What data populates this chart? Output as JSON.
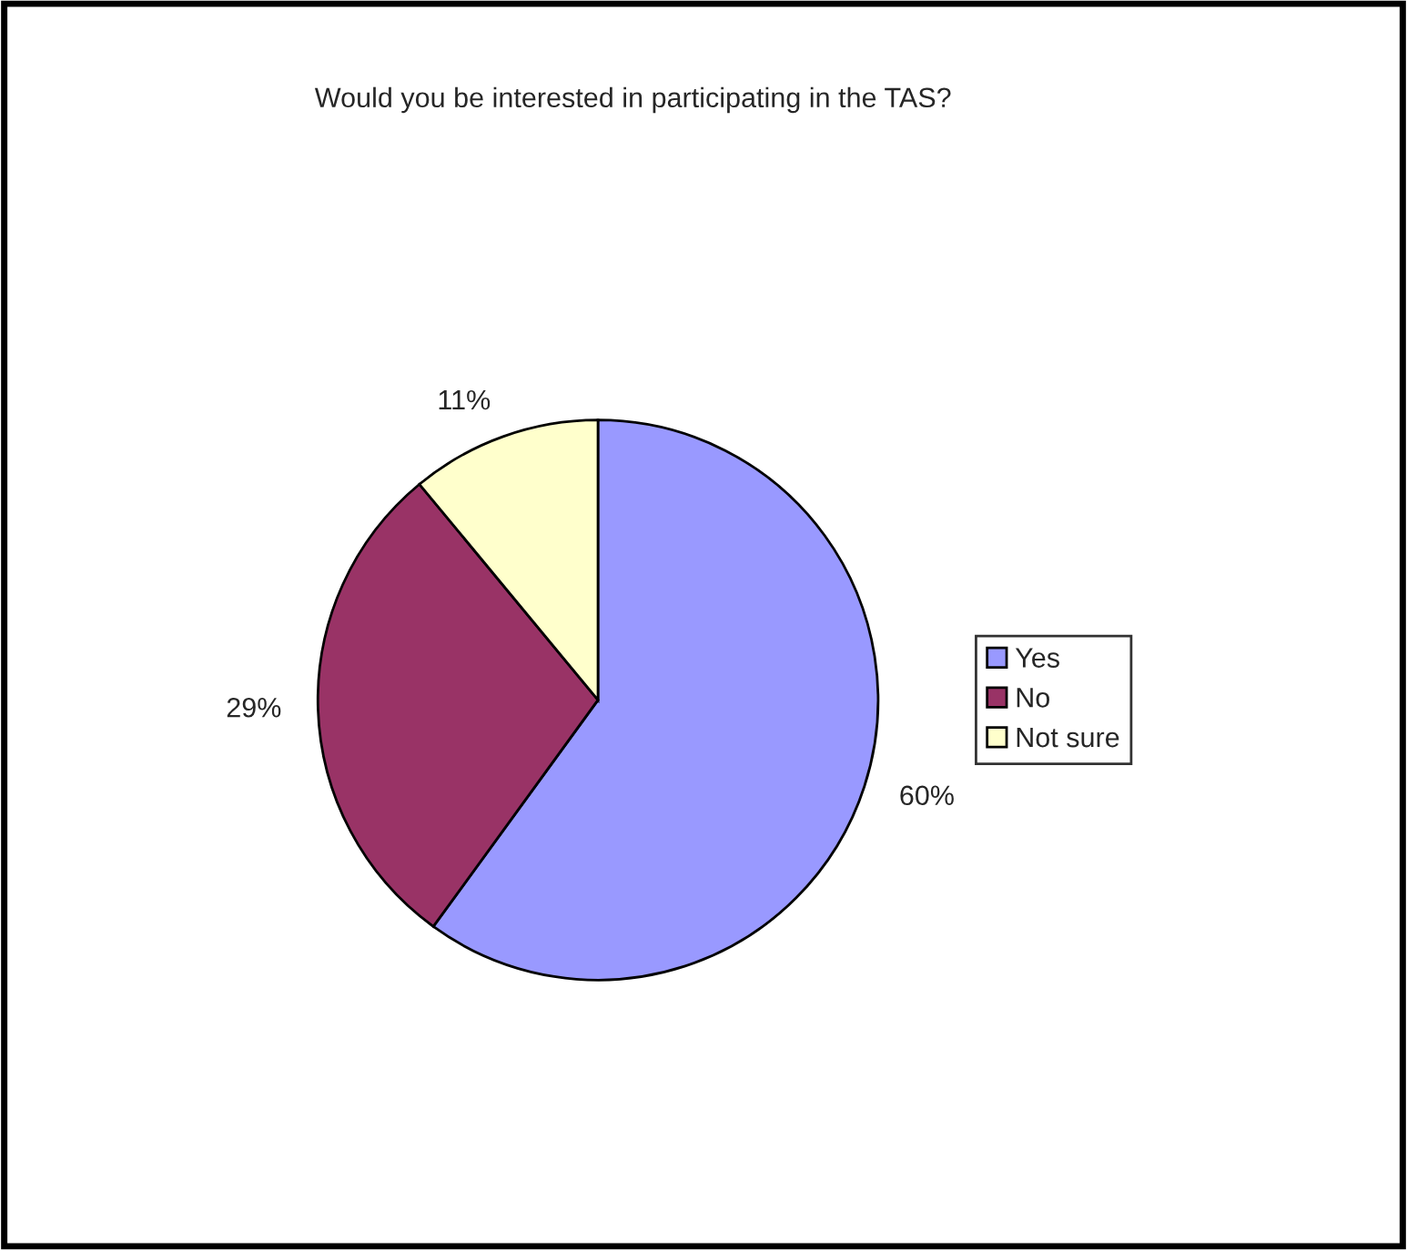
{
  "chart_data": {
    "type": "pie",
    "title": "Would you be interested in participating in the TAS?",
    "categories": [
      "Yes",
      "No",
      "Not sure"
    ],
    "values": [
      60,
      29,
      11
    ],
    "value_labels": [
      "60%",
      "29%",
      "11%"
    ],
    "colors": [
      "#9999ff",
      "#993366",
      "#ffffcc"
    ],
    "legend": "right"
  }
}
